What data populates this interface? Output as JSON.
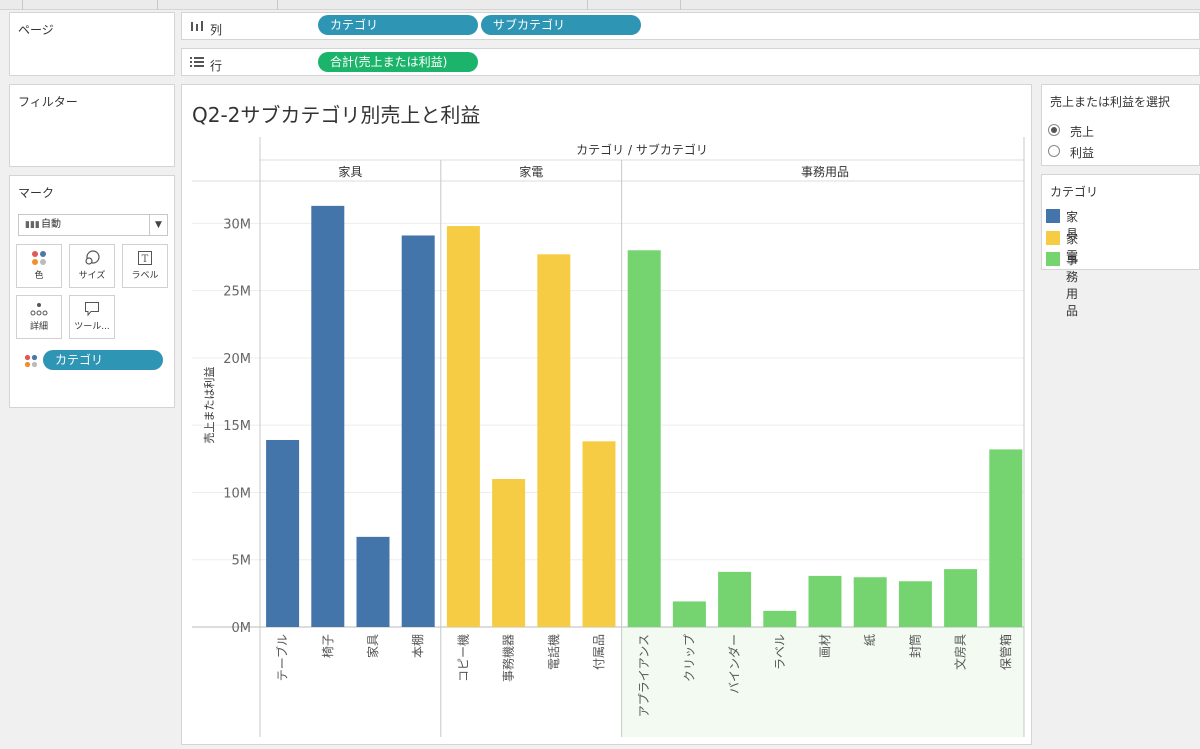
{
  "shelves": {
    "columns": {
      "icon": "column-bars-icon",
      "label": "列",
      "pills": [
        "カテゴリ",
        "サブカテゴリ"
      ]
    },
    "rows": {
      "icon": "list-rows-icon",
      "label": "行",
      "pills": [
        "合計(売上または利益)"
      ]
    }
  },
  "left_panels": {
    "pages": {
      "title": "ページ"
    },
    "filters": {
      "title": "フィルター"
    },
    "marks": {
      "title": "マーク",
      "mark_type": "自動",
      "buttons": [
        {
          "icon": "color-dots-icon",
          "label": "色"
        },
        {
          "icon": "size-shape-icon",
          "label": "サイズ"
        },
        {
          "icon": "text-label-icon",
          "label": "ラベル"
        },
        {
          "icon": "detail-dots-icon",
          "label": "詳細"
        },
        {
          "icon": "tooltip-bubble-icon",
          "label": "ツール..."
        }
      ],
      "color_pill": "カテゴリ"
    }
  },
  "parameter": {
    "title": "売上または利益を選択",
    "options": [
      "売上",
      "利益"
    ],
    "selected": "売上"
  },
  "legend": {
    "title": "カテゴリ",
    "items": [
      {
        "label": "家具",
        "color": "#4375aa"
      },
      {
        "label": "家電",
        "color": "#f7cc45"
      },
      {
        "label": "事務用品",
        "color": "#75d470"
      }
    ]
  },
  "chart_data": {
    "type": "bar",
    "title": "Q2-2サブカテゴリ別売上と利益",
    "header_title": "カテゴリ / サブカテゴリ",
    "ylabel": "売上または利益",
    "ylim": [
      0,
      33000000
    ],
    "yticks": [
      {
        "value": 0,
        "label": "0M"
      },
      {
        "value": 5000000,
        "label": "5M"
      },
      {
        "value": 10000000,
        "label": "10M"
      },
      {
        "value": 15000000,
        "label": "15M"
      },
      {
        "value": 20000000,
        "label": "20M"
      },
      {
        "value": 25000000,
        "label": "25M"
      },
      {
        "value": 30000000,
        "label": "30M"
      }
    ],
    "grid": true,
    "groups": [
      {
        "name": "家具",
        "color": "#4375aa",
        "categories": [
          "テーブル",
          "椅子",
          "家具",
          "本棚"
        ],
        "values": [
          13900000,
          31300000,
          6700000,
          29100000
        ]
      },
      {
        "name": "家電",
        "color": "#f7cc45",
        "categories": [
          "コピー機",
          "事務機器",
          "電話機",
          "付属品"
        ],
        "values": [
          29800000,
          11000000,
          27700000,
          13800000
        ]
      },
      {
        "name": "事務用品",
        "color": "#75d470",
        "categories": [
          "アプライアンス",
          "クリップ",
          "バインダー",
          "ラベル",
          "画材",
          "紙",
          "封筒",
          "文房具",
          "保管箱"
        ],
        "values": [
          28000000,
          1900000,
          4100000,
          1200000,
          3800000,
          3700000,
          3400000,
          4300000,
          13200000
        ]
      }
    ]
  }
}
